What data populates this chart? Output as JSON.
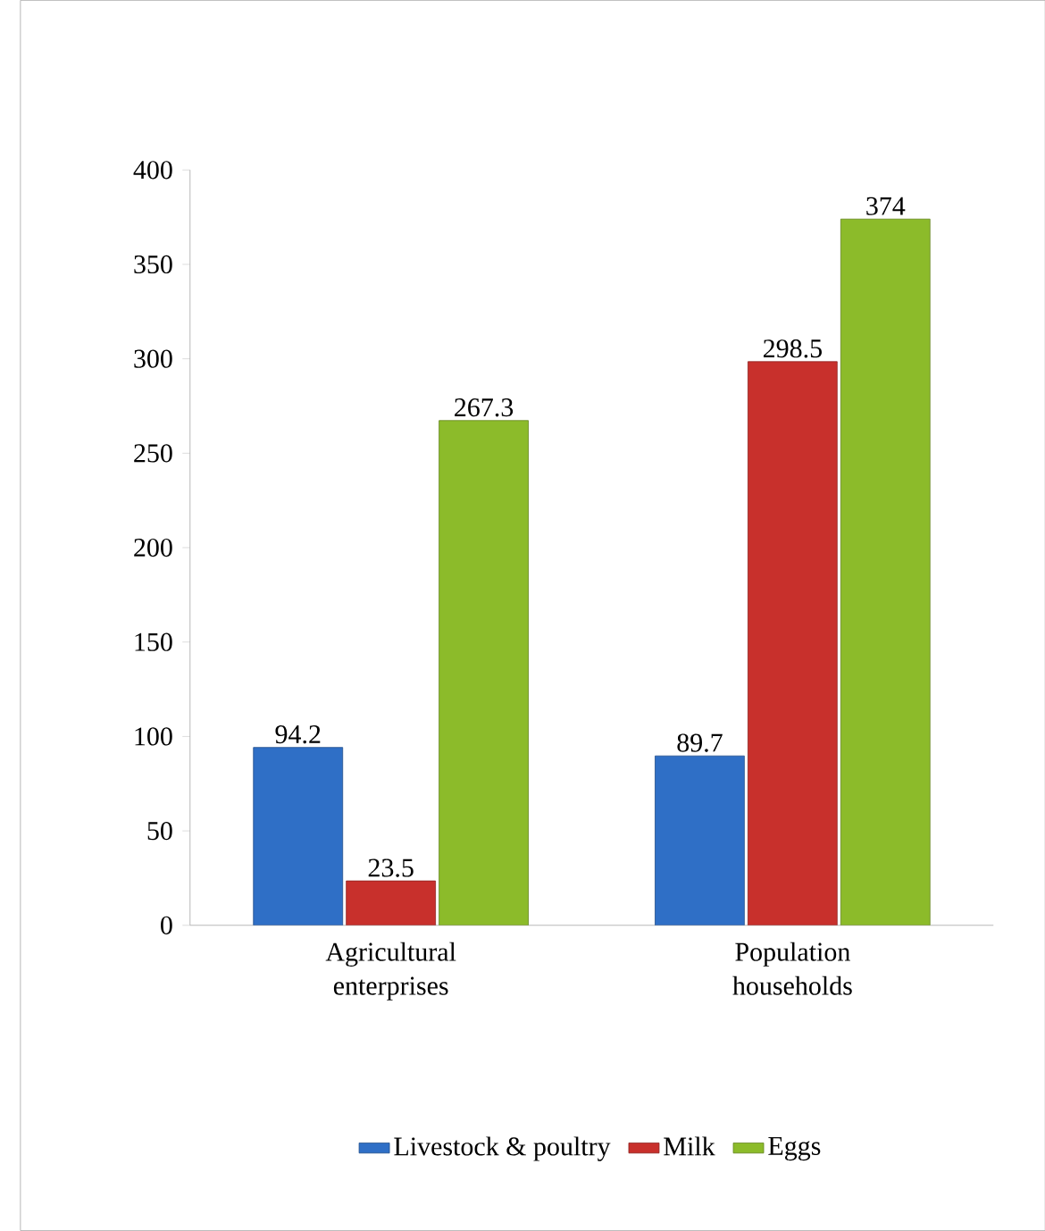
{
  "chart_data": {
    "type": "bar",
    "categories": [
      "Agricultural enterprises",
      "Population households"
    ],
    "series": [
      {
        "name": "Livestock & poultry",
        "color": "#2f6fc6",
        "values": [
          94.2,
          89.7
        ]
      },
      {
        "name": "Milk",
        "color": "#c8302c",
        "values": [
          23.5,
          298.5
        ]
      },
      {
        "name": "Eggs",
        "color": "#8cbb2a",
        "values": [
          267.3,
          374
        ]
      }
    ],
    "ylim": [
      0,
      400
    ],
    "yticks": [
      0,
      50,
      100,
      150,
      200,
      250,
      300,
      350,
      400
    ],
    "data_labels": true,
    "legend": "bottom",
    "grid": false
  }
}
